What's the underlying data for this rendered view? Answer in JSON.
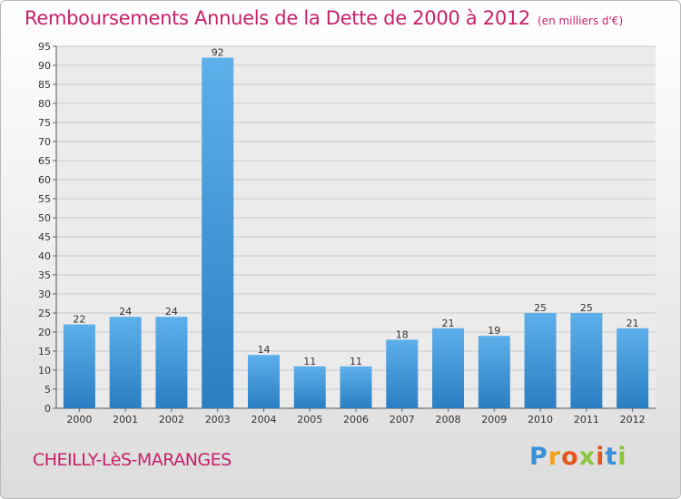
{
  "header": {
    "title": "Remboursements Annuels de la Dette de 2000 à 2012",
    "unit": "(en milliers d'€)"
  },
  "footer": {
    "commune": "CHEILLY-LèS-MARANGES",
    "brand": "Proxiti"
  },
  "colors": {
    "accent": "#c81f6b",
    "bar_top": "#5eb0eb",
    "bar_bottom": "#2a7ec2"
  },
  "chart_data": {
    "type": "bar",
    "categories": [
      "2000",
      "2001",
      "2002",
      "2003",
      "2004",
      "2005",
      "2006",
      "2007",
      "2008",
      "2009",
      "2010",
      "2011",
      "2012"
    ],
    "values": [
      22,
      24,
      24,
      92,
      14,
      11,
      11,
      18,
      21,
      19,
      25,
      25,
      21
    ],
    "title": "Remboursements Annuels de la Dette de 2000 à 2012",
    "xlabel": "",
    "ylabel": "",
    "ylim": [
      0,
      95
    ],
    "ytick_step": 5,
    "grid": true,
    "legend": "none"
  }
}
